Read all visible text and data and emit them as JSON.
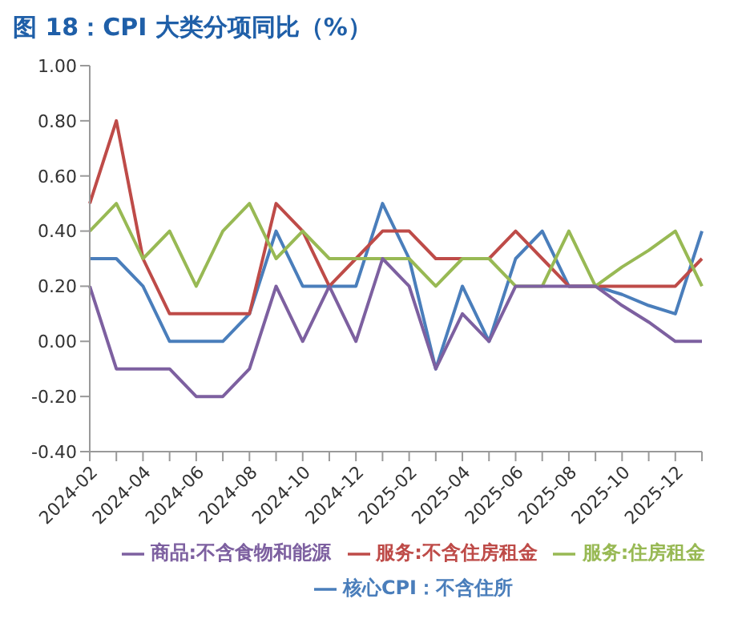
{
  "chart_data": {
    "type": "line",
    "title": "图 18：CPI 大类分项同比（%）",
    "categories": [
      "2024-02",
      null,
      "2024-04",
      null,
      "2024-06",
      null,
      "2024-08",
      null,
      "2024-10",
      null,
      "2024-12",
      null,
      "2025-02",
      null,
      "2025-04",
      null,
      "2025-06",
      null,
      "2025-08",
      null,
      "2025-10",
      null,
      "2025-12",
      null
    ],
    "series": [
      {
        "name": "核心CPI：不含住所",
        "color": "#4a7ebb",
        "values": [
          0.3,
          0.3,
          0.2,
          0,
          0,
          0,
          0.1,
          0.4,
          0.2,
          0.2,
          0.2,
          0.5,
          0.3,
          -0.1,
          0.2,
          0,
          0.3,
          0.4,
          0.2,
          0.2,
          0.17,
          0.13,
          0.1,
          0.4
        ]
      },
      {
        "name": "服务:不含住房租金",
        "color": "#be4b48",
        "values": [
          0.5,
          0.8,
          0.3,
          0.1,
          0.1,
          0.1,
          0.1,
          0.5,
          0.4,
          0.2,
          0.3,
          0.4,
          0.4,
          0.3,
          0.3,
          0.3,
          0.4,
          0.3,
          0.2,
          0.2,
          0.2,
          0.2,
          0.2,
          0.3
        ]
      },
      {
        "name": "服务:住房租金",
        "color": "#98b954",
        "values": [
          0.4,
          0.5,
          0.3,
          0.4,
          0.2,
          0.4,
          0.5,
          0.3,
          0.4,
          0.3,
          0.3,
          0.3,
          0.3,
          0.2,
          0.3,
          0.3,
          0.2,
          0.2,
          0.4,
          0.2,
          0.27,
          0.33,
          0.4,
          0.2
        ]
      },
      {
        "name": "商品:不含食物和能源",
        "color": "#7d60a0",
        "values": [
          0.2,
          -0.1,
          -0.1,
          -0.1,
          -0.2,
          -0.2,
          -0.1,
          0.2,
          0,
          0.2,
          0,
          0.3,
          0.2,
          -0.1,
          0.1,
          0,
          0.2,
          0.2,
          0.2,
          0.2,
          0.13,
          0.07,
          0,
          0
        ]
      }
    ],
    "ylim": [
      -0.4,
      1.0
    ],
    "yticks": [
      {
        "value": -0.4,
        "label": "-0.40"
      },
      {
        "value": -0.2,
        "label": "-0.20"
      },
      {
        "value": 0,
        "label": "0.00"
      },
      {
        "value": 0.2,
        "label": "0.20"
      },
      {
        "value": 0.4,
        "label": "0.40"
      },
      {
        "value": 0.6,
        "label": "0.60"
      },
      {
        "value": 0.8,
        "label": "0.80"
      },
      {
        "value": 1.0,
        "label": "1.00"
      }
    ],
    "legend": "bottom",
    "grid": false,
    "marker": "none"
  }
}
